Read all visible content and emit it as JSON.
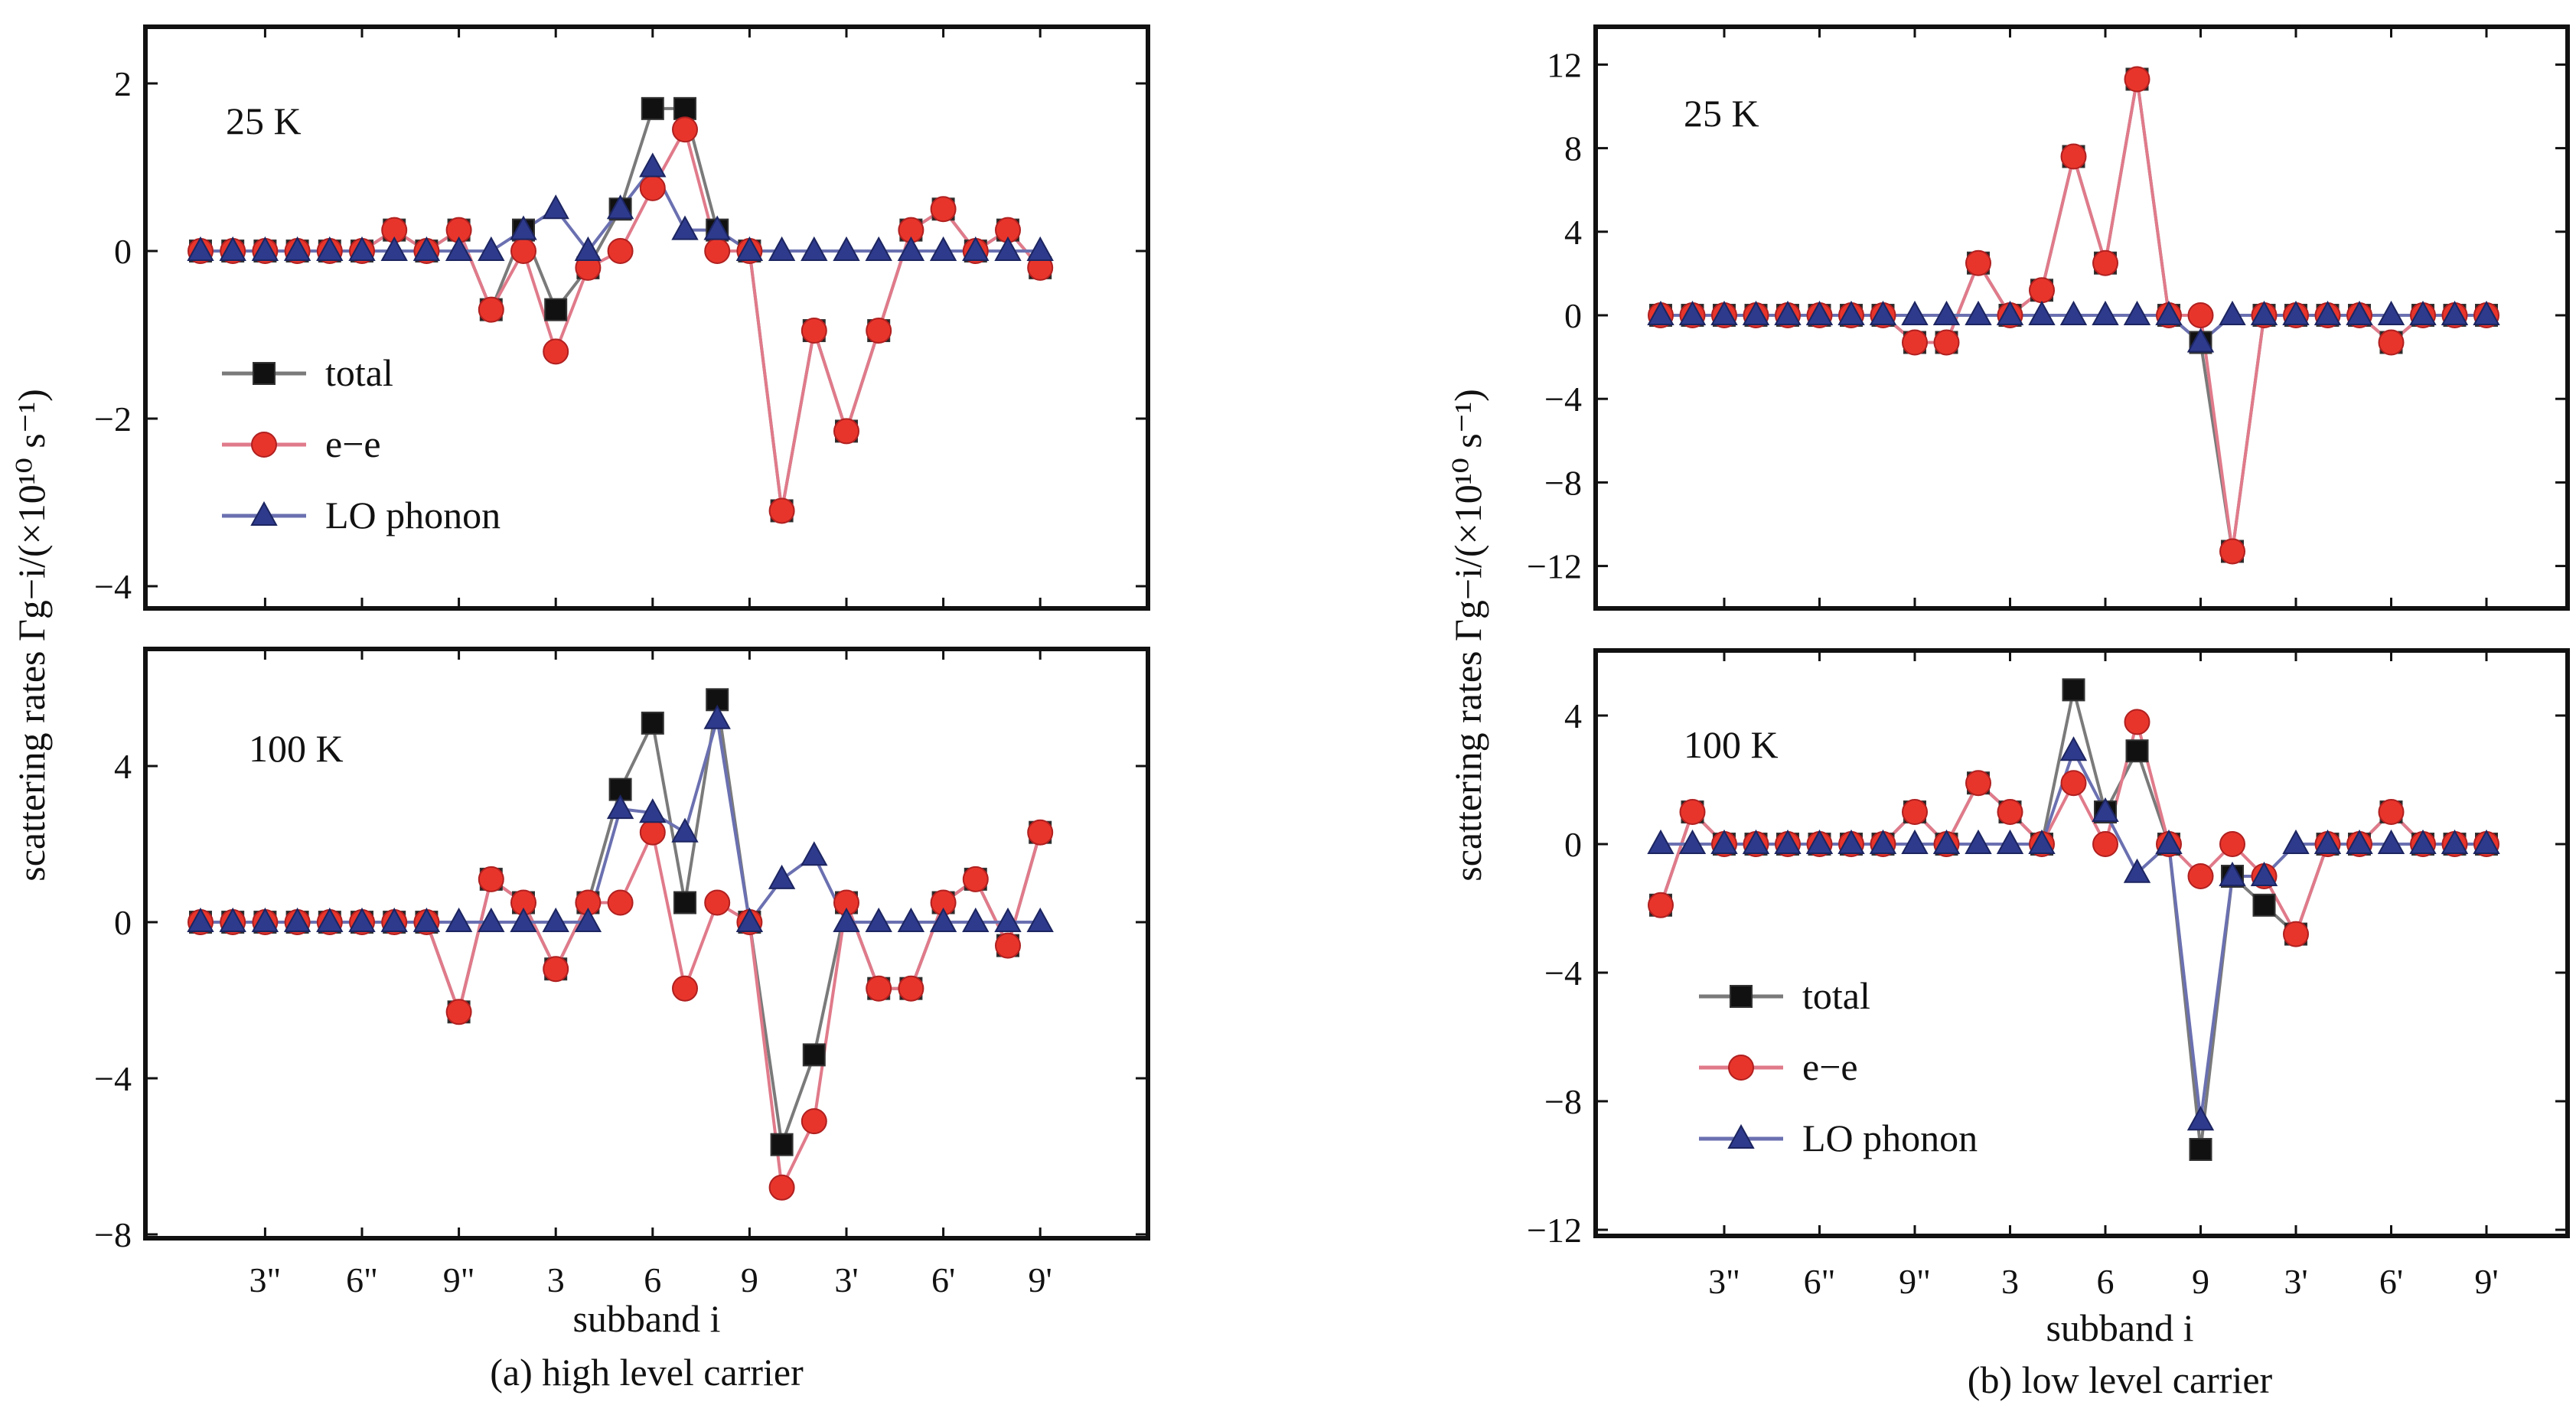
{
  "colors": {
    "total": "#111111",
    "ee": "#e8352b",
    "lo": "#2e3a8c",
    "total_line": "#7a7a7a",
    "ee_line": "#e07a8a",
    "lo_line": "#6a70b0"
  },
  "chart_data": [
    {
      "type": "line",
      "caption": "(a) high level carrier",
      "xlabel": "subband i",
      "ylabel": "scattering rates Γg−i/(×10¹⁰ s⁻¹)",
      "x_tick_labels": [
        "3\"",
        "6\"",
        "9\"",
        "3",
        "6",
        "9",
        "3'",
        "6'",
        "9'"
      ],
      "legend": [
        "total",
        "e−e",
        "LO phonon"
      ],
      "panels": [
        {
          "label": "25 K",
          "ylim": [
            -4,
            2.4
          ],
          "y_ticks": [
            2,
            0,
            -2,
            -4
          ],
          "y_tick_labels": [
            "2",
            "0",
            "−2",
            "−4"
          ],
          "series": [
            {
              "name": "total",
              "values": [
                0,
                0,
                0,
                0,
                0,
                0,
                0.25,
                0,
                0.25,
                -0.7,
                0.25,
                -0.7,
                -0.2,
                0.5,
                1.7,
                1.7,
                0.25,
                0,
                -3.1,
                -0.95,
                -2.15,
                -0.95,
                0.25,
                0.5,
                0,
                0.25,
                -0.2
              ]
            },
            {
              "name": "e−e",
              "values": [
                0,
                0,
                0,
                0,
                0,
                0,
                0.25,
                0,
                0.25,
                -0.7,
                0,
                -1.2,
                -0.2,
                0,
                0.75,
                1.45,
                0,
                0,
                -3.1,
                -0.95,
                -2.15,
                -0.95,
                0.25,
                0.5,
                0,
                0.25,
                -0.2
              ]
            },
            {
              "name": "LO phonon",
              "values": [
                0,
                0,
                0,
                0,
                0,
                0,
                0,
                0,
                0,
                0,
                0.25,
                0.5,
                0,
                0.5,
                1.0,
                0.25,
                0.25,
                0,
                0,
                0,
                0,
                0,
                0,
                0,
                0,
                0,
                0
              ]
            }
          ]
        },
        {
          "label": "100 K",
          "ylim": [
            -8,
            6.8
          ],
          "y_ticks": [
            4,
            0,
            -4,
            -8
          ],
          "y_tick_labels": [
            "4",
            "0",
            "−4",
            "−8"
          ],
          "series": [
            {
              "name": "total",
              "values": [
                0,
                0,
                0,
                0,
                0,
                0,
                0,
                0,
                -2.3,
                1.1,
                0.5,
                -1.2,
                0.5,
                3.4,
                5.1,
                0.5,
                5.7,
                0,
                -5.7,
                -3.4,
                0.5,
                -1.7,
                -1.7,
                0.5,
                1.1,
                -0.6,
                2.3
              ]
            },
            {
              "name": "e−e",
              "values": [
                0,
                0,
                0,
                0,
                0,
                0,
                0,
                0,
                -2.3,
                1.1,
                0.5,
                -1.2,
                0.5,
                0.5,
                2.3,
                -1.7,
                0.5,
                0,
                -6.8,
                -5.1,
                0.5,
                -1.7,
                -1.7,
                0.5,
                1.1,
                -0.6,
                2.3
              ]
            },
            {
              "name": "LO phonon",
              "values": [
                0,
                0,
                0,
                0,
                0,
                0,
                0,
                0,
                0,
                0,
                0,
                0,
                0,
                2.9,
                2.8,
                2.3,
                5.2,
                0,
                1.1,
                1.7,
                0,
                0,
                0,
                0,
                0,
                0,
                0
              ]
            }
          ]
        }
      ]
    },
    {
      "type": "line",
      "caption": "(b) low level carrier",
      "xlabel": "subband i",
      "ylabel": "scattering rates Γg−i/(×10¹⁰ s⁻¹)",
      "x_tick_labels": [
        "3\"",
        "6\"",
        "9\"",
        "3",
        "6",
        "9",
        "3'",
        "6'",
        "9'"
      ],
      "legend": [
        "total",
        "e−e",
        "LO phonon"
      ],
      "panels": [
        {
          "label": "25 K",
          "ylim": [
            -14,
            14
          ],
          "y_ticks": [
            12,
            8,
            4,
            0,
            -4,
            -8,
            -12
          ],
          "y_tick_labels": [
            "12",
            "8",
            "4",
            "0",
            "−4",
            "−8",
            "−12"
          ],
          "series": [
            {
              "name": "total",
              "values": [
                0,
                0,
                0,
                0,
                0,
                0,
                0,
                0,
                -1.3,
                -1.3,
                2.5,
                0,
                1.2,
                7.6,
                2.5,
                11.3,
                0,
                -1.3,
                -11.3,
                0,
                0,
                0,
                0,
                -1.3,
                0,
                0,
                0
              ]
            },
            {
              "name": "e−e",
              "values": [
                0,
                0,
                0,
                0,
                0,
                0,
                0,
                0,
                -1.3,
                -1.3,
                2.5,
                0,
                1.2,
                7.6,
                2.5,
                11.3,
                0,
                0,
                -11.3,
                0,
                0,
                0,
                0,
                -1.3,
                0,
                0,
                0
              ]
            },
            {
              "name": "LO phonon",
              "values": [
                0,
                0,
                0,
                0,
                0,
                0,
                0,
                0,
                0,
                0,
                0,
                0,
                0,
                0,
                0,
                0,
                0,
                -1.3,
                0,
                0,
                0,
                0,
                0,
                0,
                0,
                0,
                0
              ]
            }
          ]
        },
        {
          "label": "100 K",
          "ylim": [
            -12,
            6
          ],
          "y_ticks": [
            4,
            0,
            -4,
            -8,
            -12
          ],
          "y_tick_labels": [
            "4",
            "0",
            "−4",
            "−8",
            "−12"
          ],
          "series": [
            {
              "name": "total",
              "values": [
                -1.9,
                1,
                0,
                0,
                0,
                0,
                0,
                0,
                1,
                0,
                1.9,
                1,
                0,
                4.8,
                1,
                2.9,
                0,
                -9.5,
                -1,
                -1.9,
                -2.8,
                0,
                0,
                1,
                0,
                0,
                0
              ]
            },
            {
              "name": "e−e",
              "values": [
                -1.9,
                1,
                0,
                0,
                0,
                0,
                0,
                0,
                1,
                0,
                1.9,
                1,
                0,
                1.9,
                0,
                3.8,
                0,
                -1,
                0,
                -1,
                -2.8,
                0,
                0,
                1,
                0,
                0,
                0
              ]
            },
            {
              "name": "LO phonon",
              "values": [
                0,
                0,
                0,
                0,
                0,
                0,
                0,
                0,
                0,
                0,
                0,
                0,
                0,
                2.9,
                1,
                -0.9,
                0,
                -8.6,
                -1,
                -1,
                0,
                0,
                0,
                0,
                0,
                0,
                0
              ]
            }
          ]
        }
      ]
    }
  ]
}
